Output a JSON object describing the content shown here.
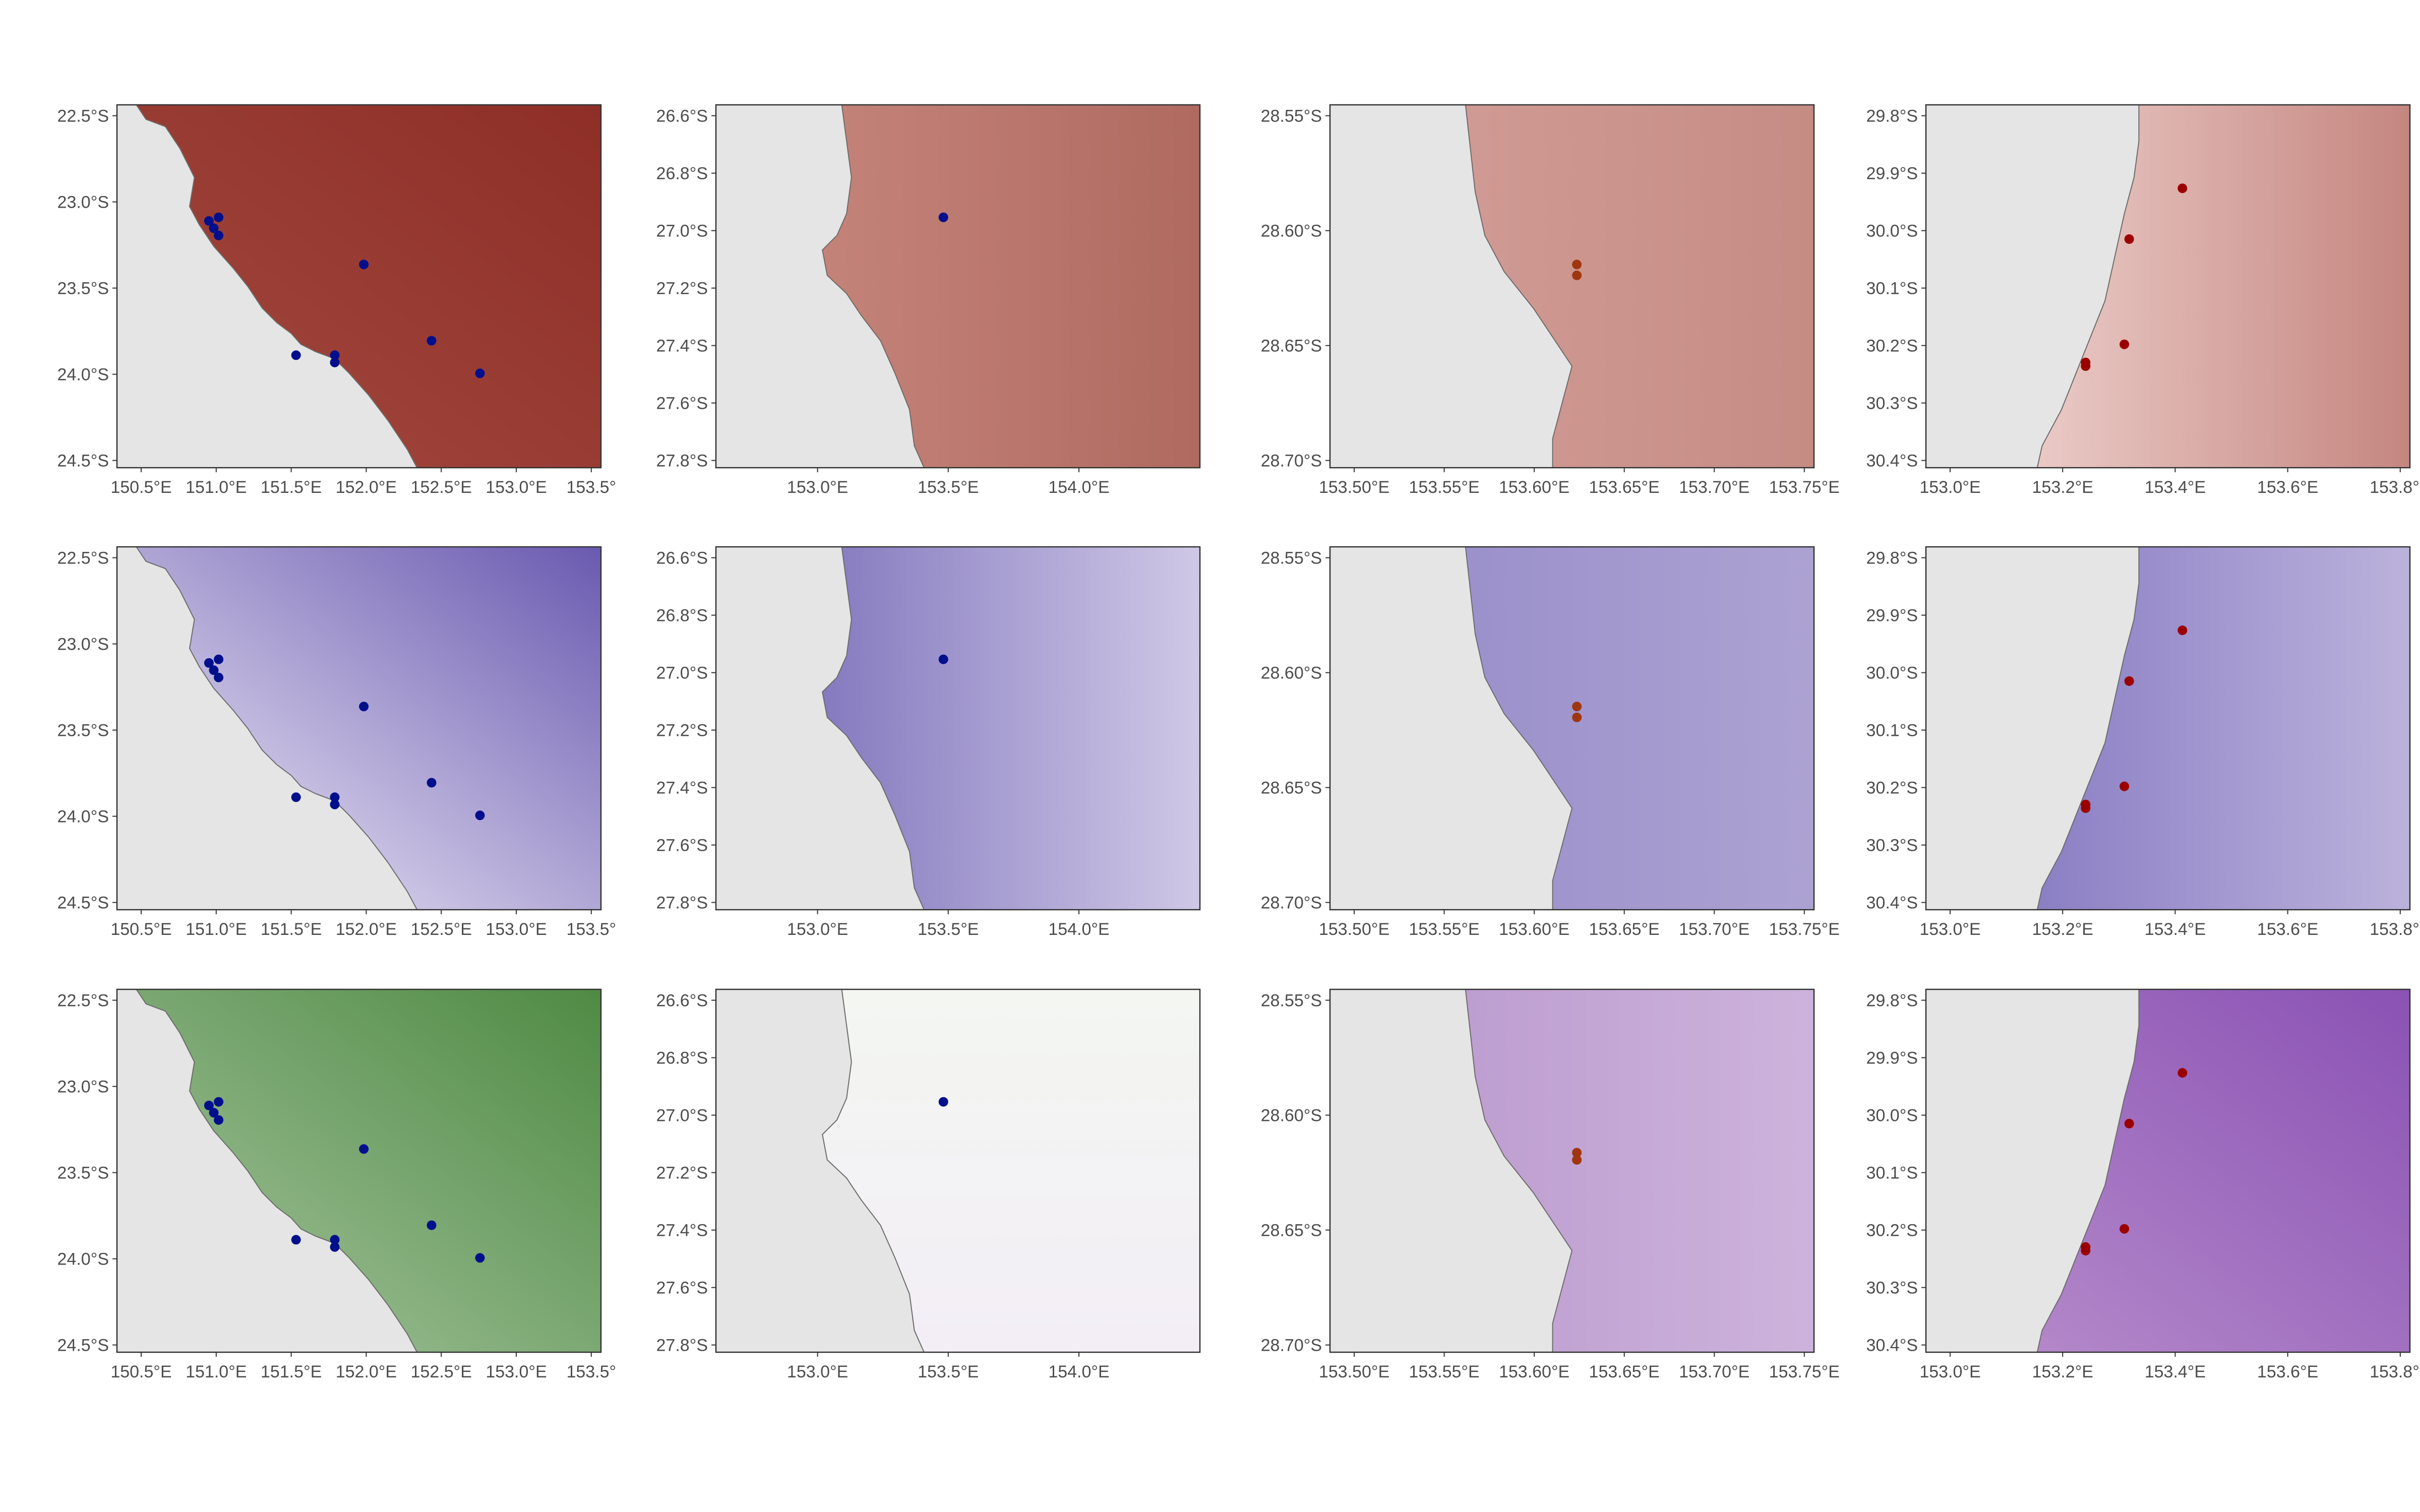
{
  "figure": {
    "rows": [
      {
        "ramp": [
          "#c98a80",
          "#8e2e27"
        ],
        "point_set": "blue"
      },
      {
        "ramp": [
          "#f4f1fa",
          "#5a4aa8"
        ],
        "point_set": "blue"
      },
      {
        "ramp": [
          "#ffffff",
          "#3f7a34"
        ],
        "point_set": "blue"
      }
    ],
    "panels": [
      {
        "id": "r1c1",
        "x_ticks": [
          "150.5°E",
          "151.0°E",
          "151.5°E",
          "152.0°E",
          "152.5°E",
          "153.0°E",
          "153.5°"
        ],
        "y_ticks": [
          "22.5°S",
          "23.0°S",
          "23.5°S",
          "24.0°S",
          "24.5°S"
        ],
        "land": "#e5e5e5",
        "sea_from": "#a34a40",
        "sea_to": "#8e2e27",
        "sea_angle": "diag",
        "points_color": "#000f8c",
        "points": [
          [
            0.19,
            0.32
          ],
          [
            0.21,
            0.31
          ],
          [
            0.2,
            0.34
          ],
          [
            0.21,
            0.36
          ],
          [
            0.51,
            0.44
          ],
          [
            0.37,
            0.69
          ],
          [
            0.45,
            0.69
          ],
          [
            0.45,
            0.71
          ],
          [
            0.65,
            0.65
          ],
          [
            0.75,
            0.74
          ]
        ]
      },
      {
        "id": "r1c2",
        "x_ticks": [
          "153.0°E",
          "153.5°E",
          "154.0°E"
        ],
        "y_ticks": [
          "26.6°S",
          "26.8°S",
          "27.0°S",
          "27.2°S",
          "27.4°S",
          "27.6°S",
          "27.8°S"
        ],
        "land": "#e5e5e5",
        "sea_from": "#c98a80",
        "sea_to": "#b06a60",
        "sea_angle": "horiz",
        "points_color": "#000f8c",
        "points": [
          [
            0.47,
            0.31
          ]
        ]
      },
      {
        "id": "r1c3",
        "x_ticks": [
          "153.50°E",
          "153.55°E",
          "153.60°E",
          "153.65°E",
          "153.70°E",
          "153.75°E"
        ],
        "y_ticks": [
          "28.55°S",
          "28.60°S",
          "28.65°S",
          "28.70°S"
        ],
        "land": "#e5e5e5",
        "sea_from": "#d4a09a",
        "sea_to": "#c58c84",
        "sea_angle": "horiz",
        "points_color": "#a0360e",
        "points": [
          [
            0.51,
            0.44
          ],
          [
            0.51,
            0.47
          ]
        ]
      },
      {
        "id": "r1c4",
        "x_ticks": [
          "153.0°E",
          "153.2°E",
          "153.4°E",
          "153.6°E",
          "153.8°E"
        ],
        "y_ticks": [
          "29.8°S",
          "29.9°S",
          "30.0°S",
          "30.1°S",
          "30.2°S",
          "30.3°S",
          "30.4°S"
        ],
        "land": "#e5e5e5",
        "sea_from": "#f5dedb",
        "sea_to": "#c58680",
        "sea_angle": "horiz",
        "points_color": "#9b0000",
        "points": [
          [
            0.53,
            0.23
          ],
          [
            0.42,
            0.37
          ],
          [
            0.41,
            0.66
          ],
          [
            0.33,
            0.71
          ],
          [
            0.33,
            0.72
          ]
        ]
      },
      {
        "id": "r2c1",
        "x_ticks": [
          "150.5°E",
          "151.0°E",
          "151.5°E",
          "152.0°E",
          "152.5°E",
          "153.0°E",
          "153.5°"
        ],
        "y_ticks": [
          "22.5°S",
          "23.0°S",
          "23.5°S",
          "24.0°S",
          "24.5°S"
        ],
        "land": "#e5e5e5",
        "sea_from": "#6a5ab0",
        "sea_to": "#f7f5fb",
        "sea_angle": "diag-rev",
        "points_color": "#000f8c",
        "points": [
          [
            0.19,
            0.32
          ],
          [
            0.21,
            0.31
          ],
          [
            0.2,
            0.34
          ],
          [
            0.21,
            0.36
          ],
          [
            0.51,
            0.44
          ],
          [
            0.37,
            0.69
          ],
          [
            0.45,
            0.69
          ],
          [
            0.45,
            0.71
          ],
          [
            0.65,
            0.65
          ],
          [
            0.75,
            0.74
          ]
        ]
      },
      {
        "id": "r2c2",
        "x_ticks": [
          "153.0°E",
          "153.5°E",
          "154.0°E"
        ],
        "y_ticks": [
          "26.6°S",
          "26.8°S",
          "27.0°S",
          "27.2°S",
          "27.4°S",
          "27.6°S",
          "27.8°S"
        ],
        "land": "#e5e5e5",
        "sea_from": "#7064b4",
        "sea_to": "#cfc8e6",
        "sea_angle": "horiz",
        "points_color": "#000f8c",
        "points": [
          [
            0.47,
            0.31
          ]
        ]
      },
      {
        "id": "r2c3",
        "x_ticks": [
          "153.50°E",
          "153.55°E",
          "153.60°E",
          "153.65°E",
          "153.70°E",
          "153.75°E"
        ],
        "y_ticks": [
          "28.55°S",
          "28.60°S",
          "28.65°S",
          "28.70°S"
        ],
        "land": "#e5e5e5",
        "sea_from": "#958ac8",
        "sea_to": "#aca2d2",
        "sea_angle": "horiz",
        "points_color": "#a0360e",
        "points": [
          [
            0.51,
            0.44
          ],
          [
            0.51,
            0.47
          ]
        ]
      },
      {
        "id": "r2c4",
        "x_ticks": [
          "153.0°E",
          "153.2°E",
          "153.4°E",
          "153.6°E",
          "153.8°E"
        ],
        "y_ticks": [
          "29.8°S",
          "29.9°S",
          "30.0°S",
          "30.1°S",
          "30.2°S",
          "30.3°S",
          "30.4°S"
        ],
        "land": "#e5e5e5",
        "sea_from": "#7d70bd",
        "sea_to": "#bbb2dc",
        "sea_angle": "horiz",
        "points_color": "#9b0000",
        "points": [
          [
            0.53,
            0.23
          ],
          [
            0.42,
            0.37
          ],
          [
            0.41,
            0.66
          ],
          [
            0.33,
            0.71
          ],
          [
            0.33,
            0.72
          ]
        ]
      },
      {
        "id": "r3c1",
        "x_ticks": [
          "150.5°E",
          "151.0°E",
          "151.5°E",
          "152.0°E",
          "152.5°E",
          "153.0°E",
          "153.5°"
        ],
        "y_ticks": [
          "22.5°S",
          "23.0°S",
          "23.5°S",
          "24.0°S",
          "24.5°S"
        ],
        "land": "#e5e5e5",
        "sea_from": "#4f8a44",
        "sea_to": "#a9c7a2",
        "sea_angle": "diag-rev",
        "points_color": "#000f8c",
        "points": [
          [
            0.19,
            0.32
          ],
          [
            0.21,
            0.31
          ],
          [
            0.2,
            0.34
          ],
          [
            0.21,
            0.36
          ],
          [
            0.51,
            0.44
          ],
          [
            0.37,
            0.69
          ],
          [
            0.45,
            0.69
          ],
          [
            0.45,
            0.71
          ],
          [
            0.65,
            0.65
          ],
          [
            0.75,
            0.74
          ]
        ]
      },
      {
        "id": "r3c2",
        "x_ticks": [
          "153.0°E",
          "153.5°E",
          "154.0°E"
        ],
        "y_ticks": [
          "26.6°S",
          "26.8°S",
          "27.0°S",
          "27.2°S",
          "27.4°S",
          "27.6°S",
          "27.8°S"
        ],
        "land": "#e5e5e5",
        "sea_from": "#f3f6f1",
        "sea_to": "#f3eef6",
        "sea_angle": "vert",
        "points_color": "#000f8c",
        "points": [
          [
            0.47,
            0.31
          ]
        ]
      },
      {
        "id": "r3c3",
        "x_ticks": [
          "153.50°E",
          "153.55°E",
          "153.60°E",
          "153.65°E",
          "153.70°E",
          "153.75°E"
        ],
        "y_ticks": [
          "28.55°S",
          "28.60°S",
          "28.65°S",
          "28.70°S"
        ],
        "land": "#e5e5e5",
        "sea_from": "#b896cc",
        "sea_to": "#cdb3dc",
        "sea_angle": "horiz",
        "points_color": "#a0360e",
        "points": [
          [
            0.51,
            0.45
          ],
          [
            0.51,
            0.47
          ]
        ]
      },
      {
        "id": "r3c4",
        "x_ticks": [
          "153.0°E",
          "153.2°E",
          "153.4°E",
          "153.6°E",
          "153.8°E"
        ],
        "y_ticks": [
          "29.8°S",
          "29.9°S",
          "30.0°S",
          "30.1°S",
          "30.2°S",
          "30.3°S",
          "30.4°S"
        ],
        "land": "#e5e5e5",
        "sea_from": "#8a52b4",
        "sea_to": "#b88ecc",
        "sea_angle": "diag-rev",
        "points_color": "#9b0000",
        "points": [
          [
            0.53,
            0.23
          ],
          [
            0.42,
            0.37
          ],
          [
            0.41,
            0.66
          ],
          [
            0.33,
            0.71
          ],
          [
            0.33,
            0.72
          ]
        ]
      }
    ]
  }
}
